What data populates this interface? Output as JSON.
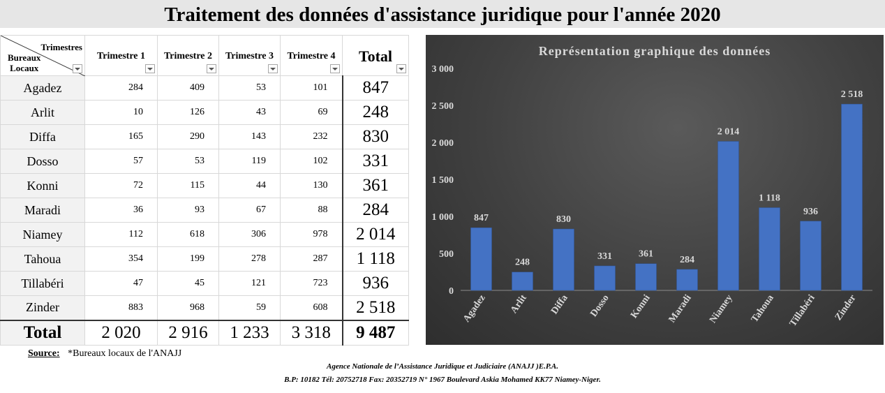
{
  "title": "Traitement des données d'assistance juridique pour l'année 2020",
  "table": {
    "corner_top": "Trimestres",
    "corner_bottom_1": "Bureaux",
    "corner_bottom_2": "Locaux",
    "headers": [
      "Trimestre 1",
      "Trimestre 2",
      "Trimestre 3",
      "Trimestre 4",
      "Total"
    ],
    "rows": [
      {
        "office": "Agadez",
        "q1": "284",
        "q2": "409",
        "q3": "53",
        "q4": "101",
        "total": "847"
      },
      {
        "office": "Arlit",
        "q1": "10",
        "q2": "126",
        "q3": "43",
        "q4": "69",
        "total": "248"
      },
      {
        "office": "Diffa",
        "q1": "165",
        "q2": "290",
        "q3": "143",
        "q4": "232",
        "total": "830"
      },
      {
        "office": "Dosso",
        "q1": "57",
        "q2": "53",
        "q3": "119",
        "q4": "102",
        "total": "331"
      },
      {
        "office": "Konni",
        "q1": "72",
        "q2": "115",
        "q3": "44",
        "q4": "130",
        "total": "361"
      },
      {
        "office": "Maradi",
        "q1": "36",
        "q2": "93",
        "q3": "67",
        "q4": "88",
        "total": "284"
      },
      {
        "office": "Niamey",
        "q1": "112",
        "q2": "618",
        "q3": "306",
        "q4": "978",
        "total": "2 014"
      },
      {
        "office": "Tahoua",
        "q1": "354",
        "q2": "199",
        "q3": "278",
        "q4": "287",
        "total": "1 118"
      },
      {
        "office": "Tillabéri",
        "q1": "47",
        "q2": "45",
        "q3": "121",
        "q4": "723",
        "total": "936"
      },
      {
        "office": "Zinder",
        "q1": "883",
        "q2": "968",
        "q3": "59",
        "q4": "608",
        "total": "2 518"
      }
    ],
    "footer": {
      "label": "Total",
      "q1": "2 020",
      "q2": "2 916",
      "q3": "1 233",
      "q4": "3 318",
      "total": "9 487"
    }
  },
  "chart_data": {
    "type": "bar",
    "title": "Représentation graphique des données",
    "categories": [
      "Agadez",
      "Arlit",
      "Diffa",
      "Dosso",
      "Konni",
      "Maradi",
      "Niamey",
      "Tahoua",
      "Tillabéri",
      "Zinder"
    ],
    "values": [
      847,
      248,
      830,
      331,
      361,
      284,
      2014,
      1118,
      936,
      2518
    ],
    "value_labels": [
      "847",
      "248",
      "830",
      "331",
      "361",
      "284",
      "2 014",
      "1 118",
      "936",
      "2 518"
    ],
    "ylim": [
      0,
      3000
    ],
    "yticks": [
      0,
      500,
      1000,
      1500,
      2000,
      2500,
      3000
    ],
    "ytick_labels": [
      "0",
      "500",
      "1 000",
      "1 500",
      "2 000",
      "2 500",
      "3 000"
    ],
    "grid": false,
    "colors": {
      "bar": "#4472c4",
      "background": "#404040",
      "text": "#d9d9d9"
    }
  },
  "footer": {
    "source_label": "Source:",
    "source_text": "*Bureaux locaux de l'ANAJJ",
    "agency_line1": "Agence Nationale de l’Assistance Juridique et Judiciaire (ANAJJ )E.P.A.",
    "agency_line2": "B.P: 10182 Tél: 20752718 Fax: 20352719 N° 1967 Boulevard Askia Mohamed KK77 Niamey-Niger."
  }
}
